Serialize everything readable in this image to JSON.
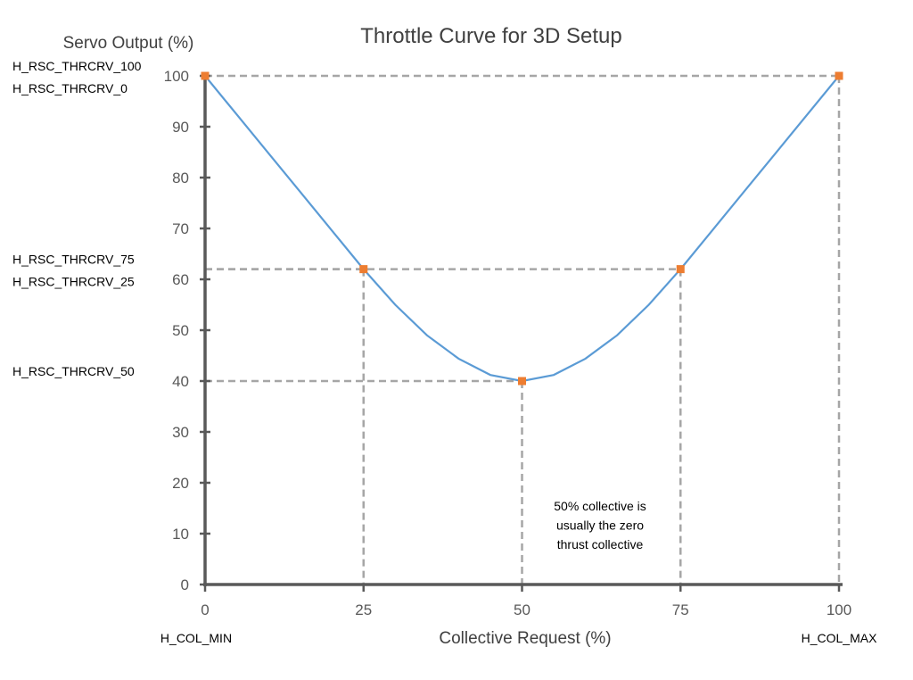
{
  "chart_data": {
    "type": "line",
    "title": "Throttle Curve for 3D Setup",
    "xlabel": "Collective Request (%)",
    "ylabel": "Servo Output (%)",
    "xlim": [
      0,
      100
    ],
    "ylim": [
      0,
      100
    ],
    "x_ticks": [
      0,
      25,
      50,
      75,
      100
    ],
    "y_ticks": [
      0,
      10,
      20,
      30,
      40,
      50,
      60,
      70,
      80,
      90,
      100
    ],
    "grid": false,
    "series": [
      {
        "name": "Throttle curve",
        "color": "#5b9bd5",
        "x": [
          0,
          5,
          10,
          15,
          20,
          25,
          30,
          35,
          40,
          45,
          50,
          55,
          60,
          65,
          70,
          75,
          80,
          85,
          90,
          95,
          100
        ],
        "y": [
          100,
          92.4,
          84.8,
          77.2,
          69.6,
          62,
          55,
          49,
          44.4,
          41.2,
          40,
          41.2,
          44.4,
          49,
          55,
          62,
          69.6,
          77.2,
          84.8,
          92.4,
          100
        ]
      }
    ],
    "markers": {
      "color": "#ed7d31",
      "x": [
        0,
        25,
        50,
        75,
        100
      ],
      "y": [
        100,
        62,
        40,
        62,
        100
      ]
    },
    "reference_line_color": "#a6a6a6",
    "y_annotations": [
      {
        "text": "H_RSC_THRCRV_100",
        "y": 100,
        "row": 0
      },
      {
        "text": "H_RSC_THRCRV_0",
        "y": 100,
        "row": 1
      },
      {
        "text": "H_RSC_THRCRV_75",
        "y": 62,
        "row": 0
      },
      {
        "text": "H_RSC_THRCRV_25",
        "y": 62,
        "row": 1
      },
      {
        "text": "H_RSC_THRCRV_50",
        "y": 40,
        "row": 0
      }
    ],
    "x_annotations": [
      {
        "text": "H_COL_MIN",
        "x": 0
      },
      {
        "text": "H_COL_MAX",
        "x": 100
      }
    ],
    "note": [
      "50% collective is",
      "usually the zero",
      "thrust collective"
    ]
  }
}
